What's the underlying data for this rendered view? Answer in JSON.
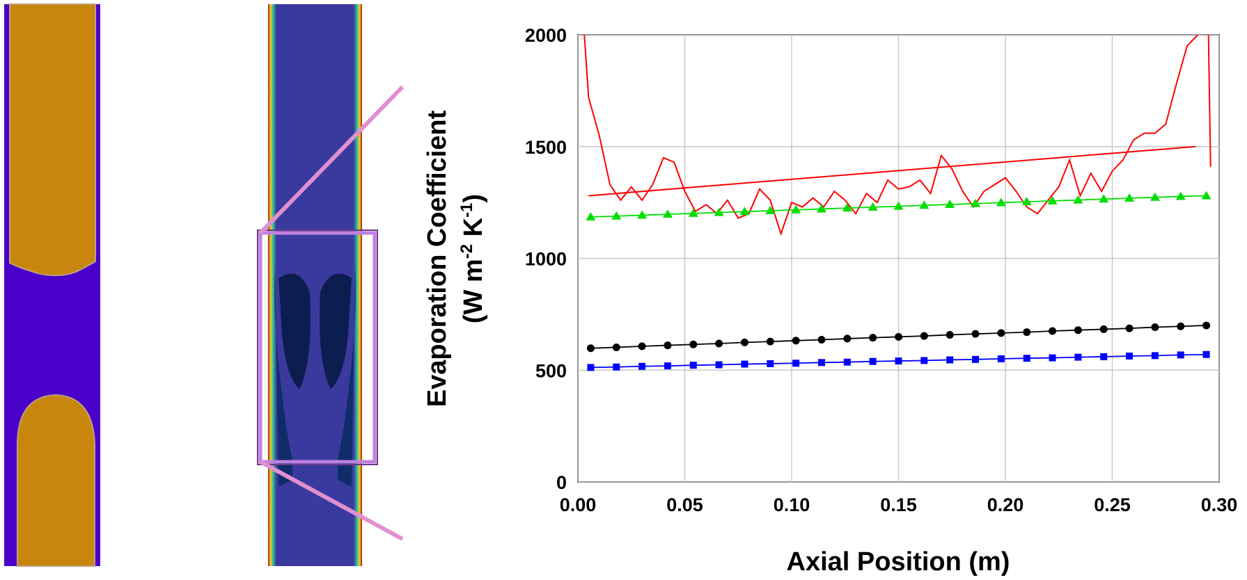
{
  "chart_data": {
    "type": "line",
    "xlabel": "Axial Position (m)",
    "ylabel": [
      "Evaporation Coefficient",
      "(W m",
      "-2",
      " K",
      "-1",
      ")"
    ],
    "xlim": [
      0,
      0.3
    ],
    "ylim": [
      0,
      2000
    ],
    "xticks": [
      {
        "value": 0,
        "label": "0.00"
      },
      {
        "value": 0.05,
        "label": "0.05"
      },
      {
        "value": 0.1,
        "label": "0.10"
      },
      {
        "value": 0.15,
        "label": "0.15"
      },
      {
        "value": 0.2,
        "label": "0.20"
      },
      {
        "value": 0.25,
        "label": "0.25"
      },
      {
        "value": 0.3,
        "label": "0.30"
      }
    ],
    "yticks": [
      0,
      500,
      1000,
      1500,
      2000
    ],
    "grid": true,
    "series": [
      {
        "color": "#ff0000",
        "marker": null,
        "x": [
          0.003,
          0.005,
          0.01,
          0.015,
          0.02,
          0.025,
          0.03,
          0.035,
          0.04,
          0.045,
          0.05,
          0.055,
          0.06,
          0.065,
          0.07,
          0.075,
          0.08,
          0.085,
          0.09,
          0.095,
          0.1,
          0.105,
          0.11,
          0.115,
          0.12,
          0.125,
          0.13,
          0.135,
          0.14,
          0.145,
          0.15,
          0.155,
          0.16,
          0.165,
          0.17,
          0.175,
          0.18,
          0.185,
          0.19,
          0.195,
          0.2,
          0.205,
          0.21,
          0.215,
          0.22,
          0.225,
          0.23,
          0.235,
          0.24,
          0.245,
          0.25,
          0.255,
          0.26,
          0.265,
          0.27,
          0.275,
          0.28,
          0.285,
          0.29,
          0.292,
          0.295,
          0.296
        ],
        "values": [
          2000,
          1720,
          1550,
          1330,
          1260,
          1320,
          1260,
          1330,
          1450,
          1430,
          1300,
          1210,
          1240,
          1200,
          1260,
          1180,
          1200,
          1310,
          1260,
          1110,
          1250,
          1230,
          1270,
          1230,
          1300,
          1260,
          1200,
          1290,
          1250,
          1350,
          1310,
          1320,
          1350,
          1290,
          1460,
          1400,
          1300,
          1230,
          1300,
          1330,
          1360,
          1300,
          1230,
          1200,
          1260,
          1320,
          1440,
          1280,
          1380,
          1300,
          1390,
          1440,
          1530,
          1560,
          1560,
          1600,
          1780,
          1950,
          2000,
          null,
          2000,
          1410
        ]
      },
      {
        "color": "#ff0000",
        "marker": null,
        "x": [
          0.005,
          0.289
        ],
        "values": [
          1280,
          1500
        ]
      },
      {
        "color": "#00dd00",
        "marker": "triangle",
        "x": [
          0.006,
          0.018,
          0.03,
          0.042,
          0.054,
          0.066,
          0.078,
          0.09,
          0.102,
          0.114,
          0.126,
          0.138,
          0.15,
          0.162,
          0.174,
          0.186,
          0.198,
          0.21,
          0.222,
          0.234,
          0.246,
          0.258,
          0.27,
          0.282,
          0.294
        ],
        "values": [
          1185,
          1189,
          1193,
          1197,
          1201,
          1205,
          1209,
          1213,
          1217,
          1221,
          1225,
          1229,
          1233,
          1237,
          1241,
          1245,
          1249,
          1253,
          1257,
          1261,
          1265,
          1269,
          1273,
          1277,
          1280
        ]
      },
      {
        "color": "#000000",
        "marker": "circle",
        "x": [
          0.006,
          0.018,
          0.03,
          0.042,
          0.054,
          0.066,
          0.078,
          0.09,
          0.102,
          0.114,
          0.126,
          0.138,
          0.15,
          0.162,
          0.174,
          0.186,
          0.198,
          0.21,
          0.222,
          0.234,
          0.246,
          0.258,
          0.27,
          0.282,
          0.294
        ],
        "values": [
          598,
          602,
          607,
          611,
          615,
          619,
          624,
          628,
          632,
          636,
          641,
          645,
          649,
          653,
          658,
          662,
          666,
          670,
          675,
          679,
          683,
          687,
          692,
          696,
          700
        ]
      },
      {
        "color": "#0000ff",
        "marker": "square",
        "x": [
          0.006,
          0.018,
          0.03,
          0.042,
          0.054,
          0.066,
          0.078,
          0.09,
          0.102,
          0.114,
          0.126,
          0.138,
          0.15,
          0.162,
          0.174,
          0.186,
          0.198,
          0.21,
          0.222,
          0.234,
          0.246,
          0.258,
          0.27,
          0.282,
          0.294
        ],
        "values": [
          512,
          514,
          517,
          519,
          522,
          524,
          527,
          529,
          531,
          534,
          536,
          539,
          541,
          543,
          546,
          548,
          551,
          553,
          555,
          558,
          560,
          563,
          565,
          568,
          570
        ]
      }
    ]
  }
}
